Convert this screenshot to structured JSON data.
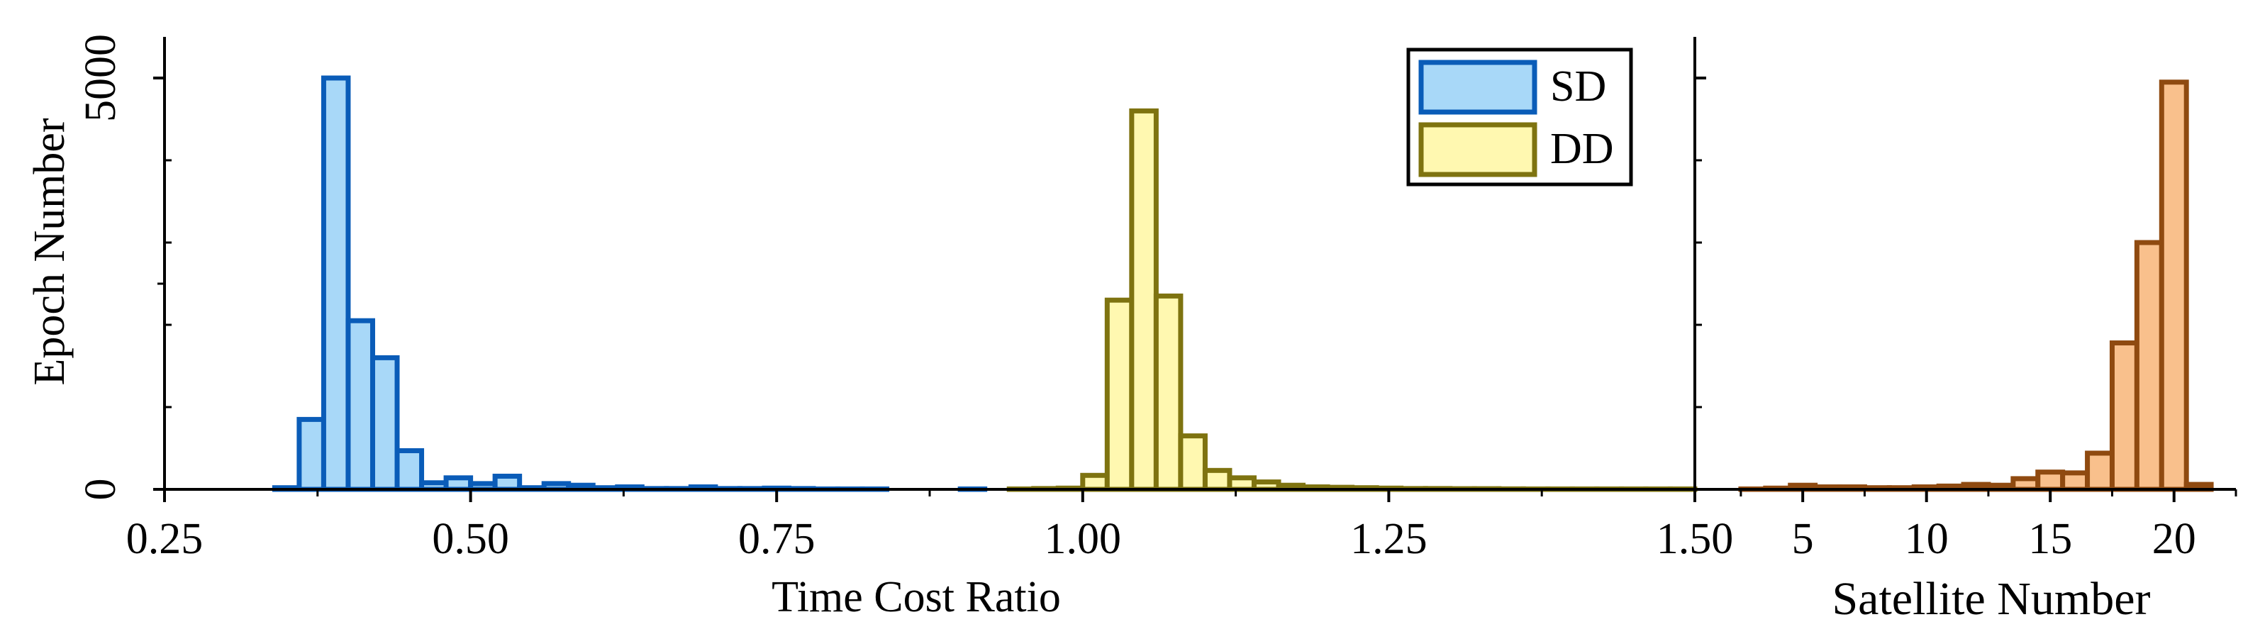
{
  "chart_data": [
    {
      "type": "histogram",
      "xlabel": "Time Cost Ratio",
      "ylabel": "Epoch Number",
      "xlim": [
        0.25,
        1.5
      ],
      "ylim": [
        0,
        5500
      ],
      "xticks": [
        "0.25",
        "0.50",
        "0.75",
        "1.00",
        "1.25",
        "1.50"
      ],
      "yticks": [
        "0",
        "5000"
      ],
      "legend": {
        "position": "top-right",
        "entries": [
          "SD",
          "DD"
        ]
      },
      "bin_width": 0.02,
      "series": [
        {
          "name": "SD",
          "fill": "#a8d8f8",
          "stroke": "#0a5cb8",
          "bins": [
            [
              0.26,
              0.28,
              0
            ],
            [
              0.3,
              0.32,
              0
            ],
            [
              0.34,
              0.36,
              20
            ],
            [
              0.36,
              0.38,
              850
            ],
            [
              0.38,
              0.4,
              5000
            ],
            [
              0.4,
              0.42,
              2050
            ],
            [
              0.42,
              0.44,
              1600
            ],
            [
              0.44,
              0.46,
              470
            ],
            [
              0.46,
              0.48,
              80
            ],
            [
              0.48,
              0.5,
              140
            ],
            [
              0.5,
              0.52,
              70
            ],
            [
              0.52,
              0.54,
              160
            ],
            [
              0.54,
              0.56,
              20
            ],
            [
              0.56,
              0.58,
              70
            ],
            [
              0.58,
              0.6,
              50
            ],
            [
              0.6,
              0.62,
              20
            ],
            [
              0.62,
              0.64,
              30
            ],
            [
              0.64,
              0.66,
              10
            ],
            [
              0.66,
              0.68,
              10
            ],
            [
              0.68,
              0.7,
              30
            ],
            [
              0.7,
              0.72,
              10
            ],
            [
              0.72,
              0.74,
              10
            ],
            [
              0.74,
              0.76,
              15
            ],
            [
              0.76,
              0.78,
              10
            ],
            [
              0.78,
              0.8,
              5
            ],
            [
              0.8,
              0.82,
              5
            ],
            [
              0.82,
              0.84,
              5
            ],
            [
              0.84,
              0.86,
              0
            ],
            [
              0.9,
              0.92,
              5
            ],
            [
              0.92,
              0.94,
              0
            ]
          ]
        },
        {
          "name": "DD",
          "fill": "#fff8b0",
          "stroke": "#7e7310",
          "bins": [
            [
              0.94,
              0.96,
              5
            ],
            [
              0.96,
              0.98,
              10
            ],
            [
              0.98,
              1.0,
              15
            ],
            [
              1.0,
              1.02,
              170
            ],
            [
              1.02,
              1.04,
              2300
            ],
            [
              1.04,
              1.06,
              4600
            ],
            [
              1.06,
              1.08,
              2350
            ],
            [
              1.08,
              1.1,
              650
            ],
            [
              1.1,
              1.12,
              230
            ],
            [
              1.12,
              1.14,
              140
            ],
            [
              1.14,
              1.16,
              90
            ],
            [
              1.16,
              1.18,
              50
            ],
            [
              1.18,
              1.2,
              30
            ],
            [
              1.2,
              1.22,
              25
            ],
            [
              1.22,
              1.24,
              20
            ],
            [
              1.24,
              1.26,
              15
            ],
            [
              1.26,
              1.28,
              10
            ],
            [
              1.28,
              1.3,
              10
            ],
            [
              1.3,
              1.32,
              8
            ],
            [
              1.32,
              1.34,
              8
            ],
            [
              1.34,
              1.36,
              6
            ],
            [
              1.36,
              1.38,
              5
            ],
            [
              1.38,
              1.4,
              5
            ],
            [
              1.4,
              1.42,
              5
            ],
            [
              1.42,
              1.44,
              5
            ],
            [
              1.44,
              1.46,
              5
            ],
            [
              1.46,
              1.48,
              5
            ],
            [
              1.48,
              1.5,
              5
            ]
          ]
        }
      ]
    },
    {
      "type": "histogram",
      "xlabel": "Satellite Number",
      "ylabel": "",
      "xlim": [
        1.5,
        22.5
      ],
      "ylim": [
        0,
        5500
      ],
      "xticks": [
        "5",
        "10",
        "15",
        "20"
      ],
      "series": [
        {
          "name": "",
          "fill": "#f9c08c",
          "stroke": "#8f4a10",
          "bins": [
            [
              2.5,
              3.5,
              5
            ],
            [
              3.5,
              4.5,
              15
            ],
            [
              4.5,
              5.5,
              50
            ],
            [
              5.5,
              6.5,
              30
            ],
            [
              6.5,
              7.5,
              30
            ],
            [
              7.5,
              8.5,
              20
            ],
            [
              8.5,
              9.5,
              20
            ],
            [
              9.5,
              10.5,
              30
            ],
            [
              10.5,
              11.5,
              40
            ],
            [
              11.5,
              12.5,
              60
            ],
            [
              12.5,
              13.5,
              50
            ],
            [
              13.5,
              14.5,
              130
            ],
            [
              14.5,
              15.5,
              210
            ],
            [
              15.5,
              16.5,
              200
            ],
            [
              16.5,
              17.5,
              440
            ],
            [
              17.5,
              18.5,
              1780
            ],
            [
              18.5,
              19.5,
              3000
            ],
            [
              19.5,
              20.5,
              4950
            ],
            [
              20.5,
              21.5,
              60
            ]
          ]
        }
      ]
    }
  ]
}
